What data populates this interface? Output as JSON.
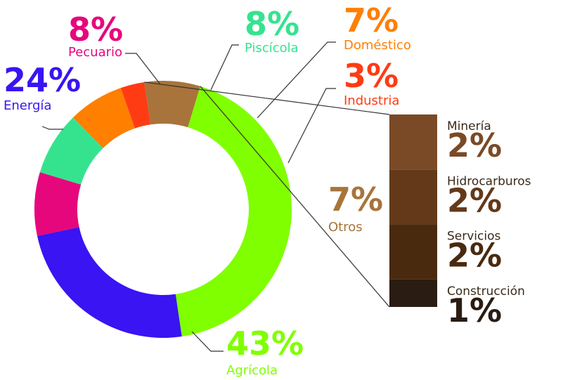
{
  "chart_data": [
    {
      "type": "pie",
      "donut": true,
      "slices": [
        {
          "label": "Pecuario",
          "value": 8,
          "display": "8%",
          "color": "#E6077D"
        },
        {
          "label": "Piscícola",
          "value": 8,
          "display": "8%",
          "color": "#35E38F"
        },
        {
          "label": "Doméstico",
          "value": 7,
          "display": "7%",
          "color": "#FF7F00"
        },
        {
          "label": "Industria",
          "value": 3,
          "display": "3%",
          "color": "#FF3B14"
        },
        {
          "label": "Otros",
          "value": 7,
          "display": "7%",
          "color": "#A8743B"
        },
        {
          "label": "Agrícola",
          "value": 43,
          "display": "43%",
          "color": "#80FF00"
        },
        {
          "label": "Energía",
          "value": 24,
          "display": "24%",
          "color": "#3A14F2"
        }
      ]
    },
    {
      "type": "bar",
      "stacked": true,
      "parent": "Otros",
      "segments": [
        {
          "label": "Minería",
          "value": 2,
          "display": "2%",
          "color": "#7A4A26"
        },
        {
          "label": "Hidrocarburos",
          "value": 2,
          "display": "2%",
          "color": "#63391A"
        },
        {
          "label": "Servicios",
          "value": 2,
          "display": "2%",
          "color": "#4A2A0E"
        },
        {
          "label": "Construcción",
          "value": 1,
          "display": "1%",
          "color": "#2A1C12"
        }
      ]
    }
  ]
}
